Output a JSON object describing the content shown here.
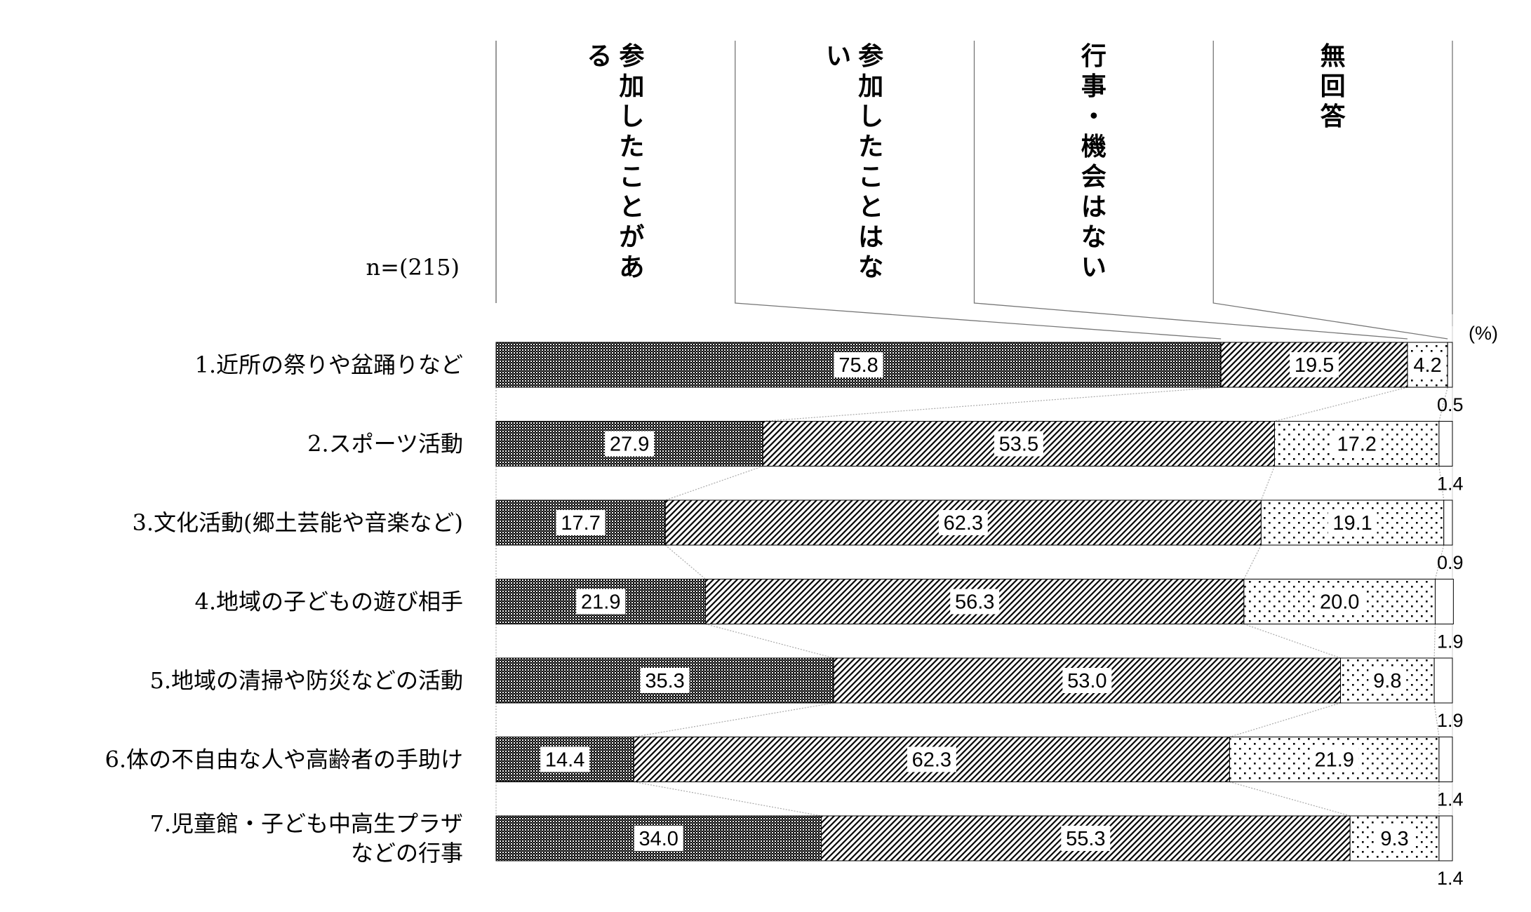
{
  "chart_data": {
    "type": "bar",
    "orientation": "horizontal",
    "stacked": true,
    "percent_stacked": true,
    "n_label": "n=(215)",
    "unit_label": "(%)",
    "xlim": [
      0,
      100
    ],
    "legend_placement": "top",
    "categories": [
      [
        "1.近所の祭りや盆踊りなど"
      ],
      [
        "2.スポーツ活動"
      ],
      [
        "3.文化活動(郷土芸能や音楽など)"
      ],
      [
        "4.地域の子どもの遊び相手"
      ],
      [
        "5.地域の清掃や防災などの活動"
      ],
      [
        "6.体の不自由な人や高齢者の手助け"
      ],
      [
        "7.児童館・子ども中高生プラザ",
        "などの行事"
      ]
    ],
    "series": [
      {
        "name": "参加したことがある",
        "pattern": "dense-dots",
        "values": [
          75.8,
          27.9,
          17.7,
          21.9,
          35.3,
          14.4,
          34.0
        ]
      },
      {
        "name": "参加したことはない",
        "pattern": "diagonal-hatch",
        "values": [
          19.5,
          53.5,
          62.3,
          56.3,
          53.0,
          62.3,
          55.3
        ]
      },
      {
        "name": "行事・機会はない",
        "pattern": "sparse-dots",
        "values": [
          4.2,
          17.2,
          19.1,
          20.0,
          9.8,
          21.9,
          9.3
        ]
      },
      {
        "name": "無回答",
        "pattern": "white",
        "values": [
          0.5,
          1.4,
          0.9,
          1.9,
          1.9,
          1.4,
          1.4
        ]
      }
    ]
  }
}
